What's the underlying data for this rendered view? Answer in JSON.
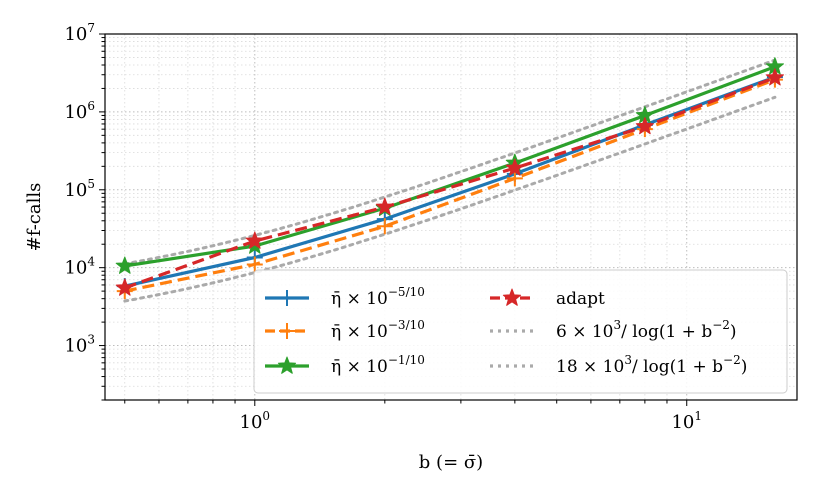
{
  "chart_data": {
    "type": "line",
    "xscale": "log",
    "yscale": "log",
    "xlim": [
      0.45,
      18
    ],
    "ylim": [
      200,
      10000000
    ],
    "xlabel": "b (= σ̄)",
    "ylabel": "#f-calls",
    "grid": true,
    "x_ticks": [
      {
        "value": 1,
        "base": "10",
        "exp": "0"
      },
      {
        "value": 10,
        "base": "10",
        "exp": "1"
      }
    ],
    "y_ticks": [
      {
        "value": 1000,
        "base": "10",
        "exp": "3"
      },
      {
        "value": 10000,
        "base": "10",
        "exp": "4"
      },
      {
        "value": 100000,
        "base": "10",
        "exp": "5"
      },
      {
        "value": 1000000,
        "base": "10",
        "exp": "6"
      },
      {
        "value": 10000000,
        "base": "10",
        "exp": "7"
      }
    ],
    "legend_position": "lower-right",
    "series": [
      {
        "name": "η̄ × 10^(−5/10)",
        "label_main": "η̄ × 10",
        "label_exp": "−5/10",
        "color": "#1f77b4",
        "dash": "solid",
        "marker": "plus",
        "x": [
          0.5,
          1,
          2,
          4,
          8,
          16
        ],
        "y": [
          5800,
          13500,
          42000,
          160000,
          680000,
          2800000
        ]
      },
      {
        "name": "η̄ × 10^(−3/10)",
        "label_main": "η̄ × 10",
        "label_exp": "−3/10",
        "color": "#ff7f0e",
        "dash": "dashed",
        "marker": "plus",
        "x": [
          0.5,
          1,
          2,
          4,
          8,
          16
        ],
        "y": [
          5000,
          11000,
          34000,
          140000,
          600000,
          2600000
        ]
      },
      {
        "name": "η̄ × 10^(−1/10)",
        "label_main": "η̄ × 10",
        "label_exp": "−1/10",
        "color": "#2ca02c",
        "dash": "solid",
        "marker": "star",
        "x": [
          0.5,
          1,
          2,
          4,
          8,
          16
        ],
        "y": [
          10500,
          19000,
          58000,
          220000,
          900000,
          3800000
        ]
      },
      {
        "name": "adapt",
        "label_main": "adapt",
        "label_exp": "",
        "color": "#d62728",
        "dash": "dashed",
        "marker": "star",
        "x": [
          0.5,
          1,
          2,
          4,
          8,
          16
        ],
        "y": [
          5500,
          22000,
          60000,
          190000,
          650000,
          2750000
        ]
      },
      {
        "name": "6 × 10^3 / log(1 + b^−2)",
        "label_main": "6 × 10",
        "label_exp": "3",
        "label_tail": "/ log(1 + b",
        "label_exp2": "−2",
        "label_end": ")",
        "color": "#aaaaaa",
        "dash": "dotted",
        "marker": "none",
        "coef": 6000
      },
      {
        "name": "18 × 10^3 / log(1 + b^−2)",
        "label_main": "18 × 10",
        "label_exp": "3",
        "label_tail": "/ log(1 + b",
        "label_exp2": "−2",
        "label_end": ")",
        "color": "#aaaaaa",
        "dash": "dotted",
        "marker": "none",
        "coef": 18000
      }
    ]
  }
}
